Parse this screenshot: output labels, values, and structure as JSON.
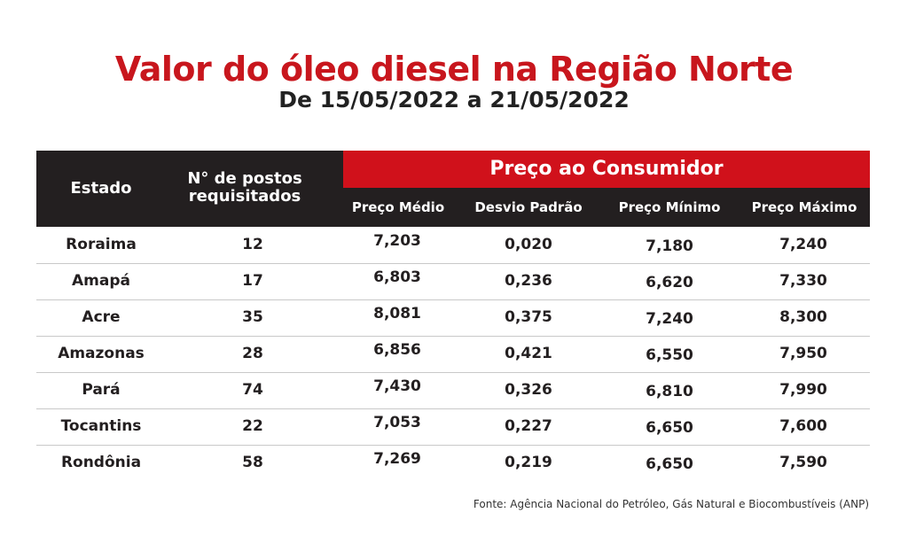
{
  "title": "Valor do óleo diesel na Região Norte",
  "subtitle": "De 15/05/2022 a 21/05/2022",
  "table": {
    "header": {
      "estado": "Estado",
      "postos_line1": "N° de postos",
      "postos_line2": "requisitados",
      "group": "Preço ao Consumidor",
      "preco_medio": "Preço Médio",
      "desvio_padrao": "Desvio Padrão",
      "preco_minimo": "Preço Mínimo",
      "preco_maximo": "Preço Máximo"
    },
    "rows": [
      {
        "estado": "Roraima",
        "postos": "12",
        "medio": "7,203",
        "desvio": "0,020",
        "minimo": "7,180",
        "maximo": "7,240"
      },
      {
        "estado": "Amapá",
        "postos": "17",
        "medio": "6,803",
        "desvio": "0,236",
        "minimo": "6,620",
        "maximo": "7,330"
      },
      {
        "estado": "Acre",
        "postos": "35",
        "medio": "8,081",
        "desvio": "0,375",
        "minimo": "7,240",
        "maximo": "8,300"
      },
      {
        "estado": "Amazonas",
        "postos": "28",
        "medio": "6,856",
        "desvio": "0,421",
        "minimo": "6,550",
        "maximo": "7,950"
      },
      {
        "estado": "Pará",
        "postos": "74",
        "medio": "7,430",
        "desvio": "0,326",
        "minimo": "6,810",
        "maximo": "7,990"
      },
      {
        "estado": "Tocantins",
        "postos": "22",
        "medio": "7,053",
        "desvio": "0,227",
        "minimo": "6,650",
        "maximo": "7,600"
      },
      {
        "estado": "Rondônia",
        "postos": "58",
        "medio": "7,269",
        "desvio": "0,219",
        "minimo": "6,650",
        "maximo": "7,590"
      }
    ]
  },
  "source": "Fonte: Agência Nacional do Petróleo, Gás Natural e Biocombustíveis (ANP)",
  "colors": {
    "title_red": "#c8161d",
    "header_dark": "#231f20",
    "header_red": "#d0111b"
  }
}
